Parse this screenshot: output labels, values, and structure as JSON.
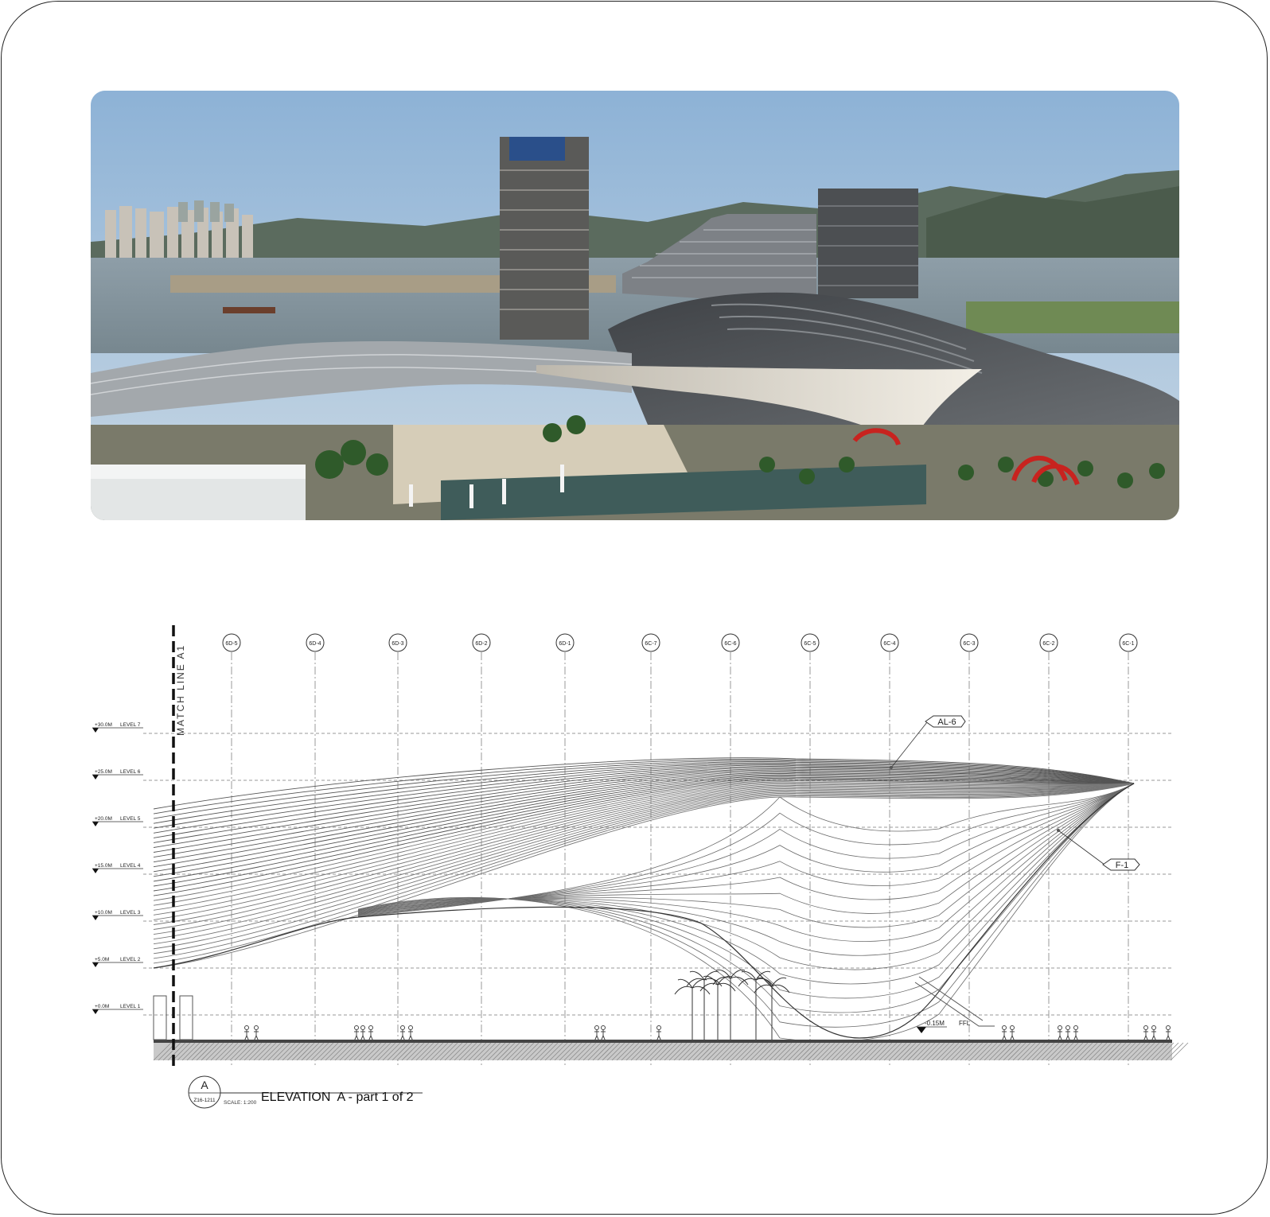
{
  "photo": {
    "icon": "convention-center-photo"
  },
  "drawing": {
    "match_line": "MATCH LINE A1",
    "grid_lines": [
      "6D-5",
      "6D-4",
      "6D-3",
      "6D-2",
      "6D-1",
      "6C-7",
      "6C-6",
      "6C-5",
      "6C-4",
      "6C-3",
      "6C-2",
      "6C-1"
    ],
    "levels": [
      {
        "elev": "+30.0M",
        "name": "LEVEL 7"
      },
      {
        "elev": "+25.0M",
        "name": "LEVEL 6"
      },
      {
        "elev": "+20.0M",
        "name": "LEVEL 5"
      },
      {
        "elev": "+15.0M",
        "name": "LEVEL 4"
      },
      {
        "elev": "+10.0M",
        "name": "LEVEL 3"
      },
      {
        "elev": "+5.0M",
        "name": "LEVEL 2"
      },
      {
        "elev": "+0.0M",
        "name": "LEVEL 1"
      }
    ],
    "tags": {
      "al": "AL-6",
      "f": "F-1"
    },
    "spot_level": "-0.15M",
    "ffl": "FFL",
    "title": {
      "bubble_letter": "A",
      "sheet_ref": "Z16-1211",
      "text": "ELEVATION  A - part 1 of 2",
      "scale": "SCALE: 1:200"
    }
  }
}
